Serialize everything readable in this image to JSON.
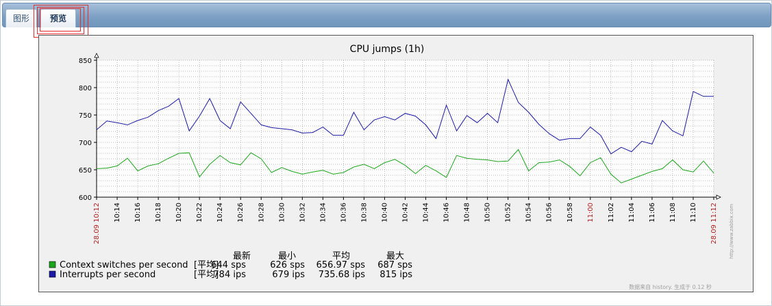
{
  "tabs": [
    {
      "label": "图形"
    },
    {
      "label": "预览"
    }
  ],
  "graph": {
    "title": "CPU jumps (1h)",
    "watermark": "http://www.zabbix.com",
    "footer": "数据来自 history. 生成于 0.12 秒",
    "legend": {
      "headers": [
        "最新",
        "最小",
        "平均",
        "最大"
      ],
      "rows": [
        {
          "name": "Context switches per second",
          "agg": "[平均]",
          "values": [
            "644 sps",
            "626 sps",
            "656.97 sps",
            "687 sps"
          ],
          "color": "#1aa61a"
        },
        {
          "name": "Interrupts per second",
          "agg": "[平均]",
          "values": [
            "784 ips",
            "679 ips",
            "735.68 ips",
            "815 ips"
          ],
          "color": "#1a1aa6"
        }
      ]
    }
  },
  "chart_data": {
    "type": "line",
    "title": "CPU jumps (1h)",
    "ylim": [
      600,
      850
    ],
    "yticks": [
      600,
      650,
      700,
      750,
      800,
      850
    ],
    "xlim": [
      "10:12",
      "11:12"
    ],
    "xticks": [
      "28.09 10:12",
      "10:14",
      "10:16",
      "10:18",
      "10:20",
      "10:22",
      "10:24",
      "10:26",
      "10:28",
      "10:30",
      "10:32",
      "10:34",
      "10:36",
      "10:38",
      "10:40",
      "10:42",
      "10:44",
      "10:46",
      "10:48",
      "10:50",
      "10:52",
      "10:54",
      "10:56",
      "10:58",
      "11:00",
      "11:02",
      "11:04",
      "11:06",
      "11:08",
      "11:10",
      "28.09 11:12"
    ],
    "highlight_ticks": [
      "28.09 10:12",
      "11:00",
      "28.09 11:12"
    ],
    "grid": true,
    "x_minutes": [
      0,
      1,
      2,
      3,
      4,
      5,
      6,
      7,
      8,
      9,
      10,
      11,
      12,
      13,
      14,
      15,
      16,
      17,
      18,
      19,
      20,
      21,
      22,
      23,
      24,
      25,
      26,
      27,
      28,
      29,
      30,
      31,
      32,
      33,
      34,
      35,
      36,
      37,
      38,
      39,
      40,
      41,
      42,
      43,
      44,
      45,
      46,
      47,
      48,
      49,
      50,
      51,
      52,
      53,
      54,
      55,
      56,
      57,
      58,
      59,
      60
    ],
    "series": [
      {
        "name": "Interrupts per second",
        "color": "#1a1aa6",
        "values": [
          723,
          739,
          736,
          732,
          740,
          746,
          758,
          766,
          780,
          721,
          748,
          780,
          740,
          725,
          774,
          753,
          732,
          727,
          725,
          723,
          717,
          718,
          728,
          713,
          713,
          755,
          723,
          741,
          747,
          741,
          753,
          748,
          732,
          707,
          768,
          721,
          749,
          736,
          753,
          736,
          815,
          773,
          755,
          733,
          716,
          704,
          707,
          707,
          728,
          713,
          679,
          691,
          683,
          702,
          697,
          740,
          721,
          712,
          793,
          784,
          784
        ]
      },
      {
        "name": "Context switches per second",
        "color": "#1aa61a",
        "values": [
          652,
          653,
          657,
          671,
          648,
          657,
          661,
          671,
          680,
          681,
          637,
          660,
          676,
          663,
          659,
          681,
          670,
          645,
          654,
          647,
          642,
          646,
          649,
          642,
          645,
          655,
          660,
          652,
          663,
          669,
          658,
          643,
          658,
          648,
          636,
          676,
          671,
          669,
          668,
          665,
          666,
          687,
          648,
          663,
          664,
          668,
          656,
          639,
          663,
          672,
          642,
          626,
          633,
          640,
          647,
          652,
          668,
          650,
          646,
          666,
          644
        ]
      }
    ]
  }
}
